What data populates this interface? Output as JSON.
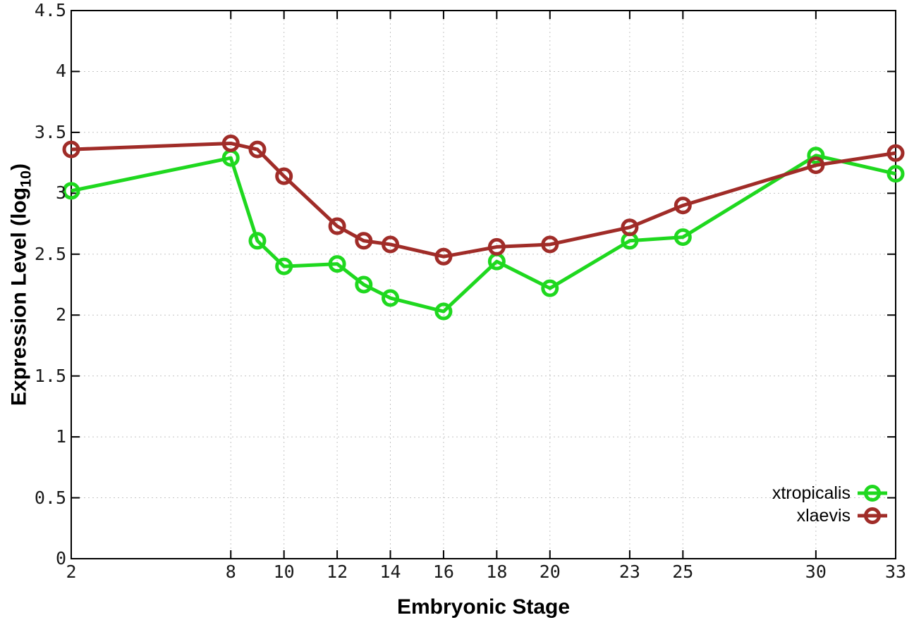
{
  "chart_data": {
    "type": "line",
    "title": "",
    "xlabel": "Embryonic Stage",
    "ylabel": "Expression Level (log10)",
    "ylabel_parts": {
      "pre": "Expression Level (log",
      "sub": "10",
      "post": ")"
    },
    "xlim": [
      2,
      33
    ],
    "ylim": [
      0,
      4.5
    ],
    "grid": true,
    "legend_position": "bottom-right",
    "xticks": [
      2,
      8,
      10,
      12,
      14,
      16,
      18,
      20,
      23,
      25,
      30,
      33
    ],
    "yticks": [
      "0",
      "0.5",
      "1",
      "1.5",
      "2",
      "2.5",
      "3",
      "3.5",
      "4",
      "4.5"
    ],
    "x": [
      2,
      8,
      9,
      10,
      12,
      13,
      14,
      16,
      18,
      20,
      23,
      25,
      30,
      33
    ],
    "series": [
      {
        "name": "xtropicalis",
        "color": "#1fd81f",
        "marker": "open-circle",
        "values": [
          3.02,
          3.29,
          2.61,
          2.4,
          2.42,
          2.25,
          2.14,
          2.03,
          2.44,
          2.22,
          2.61,
          2.64,
          3.31,
          3.16
        ]
      },
      {
        "name": "xlaevis",
        "color": "#a02c28",
        "marker": "open-circle",
        "values": [
          3.36,
          3.41,
          3.36,
          3.14,
          2.73,
          2.61,
          2.58,
          2.48,
          2.56,
          2.58,
          2.72,
          2.9,
          3.23,
          3.33
        ]
      }
    ]
  },
  "colors": {
    "background": "#ffffff",
    "border": "#000000",
    "grid": "#c4c4c4",
    "text": "#000000"
  }
}
